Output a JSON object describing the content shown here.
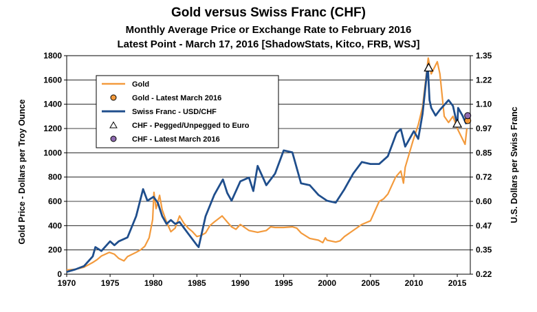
{
  "chart_data": {
    "type": "line",
    "title": "Gold versus Swiss Franc (CHF)",
    "subtitle": "Monthly Average Price or Exchange Rate to February 2016",
    "subtitle2": "Latest Point - March 17, 2016 [ShadowStats, Kitco, FRB, WSJ]",
    "ylabel_left": "Gold Price - Dollars per Troy Ounce",
    "ylabel_right": "U.S. Dollars per Swiss Franc",
    "xlim": [
      1970,
      2016.5
    ],
    "ylim_left": [
      0,
      1800
    ],
    "ylim_right": [
      0.22,
      1.35
    ],
    "x_ticks": [
      "1970",
      "1975",
      "1980",
      "1985",
      "1990",
      "1995",
      "2000",
      "2005",
      "2010",
      "2015"
    ],
    "y_ticks_left": [
      "0",
      "200",
      "400",
      "600",
      "800",
      "1000",
      "1200",
      "1400",
      "1600",
      "1800"
    ],
    "y_ticks_right": [
      "0.22",
      "0.35",
      "0.47",
      "0.60",
      "0.72",
      "0.85",
      "0.97",
      "1.10",
      "1.22",
      "1.35"
    ],
    "grid": true,
    "legend_position": "top-left",
    "legend": [
      {
        "label": "Gold",
        "kind": "line",
        "color": "#f39a3c"
      },
      {
        "label": "Gold - Latest March 2016",
        "kind": "circle",
        "color": "#f39a3c"
      },
      {
        "label": "Swiss Franc - USD/CHF",
        "kind": "line",
        "color": "#1f4e8c"
      },
      {
        "label": "CHF - Pegged/Unpegged to Euro",
        "kind": "triangle",
        "color": "#ffffff"
      },
      {
        "label": "CHF - Latest March 2016",
        "kind": "circle",
        "color": "#8e6bb0"
      }
    ],
    "series": [
      {
        "name": "Gold",
        "axis": "left",
        "color": "#f39a3c",
        "points": [
          [
            1970.0,
            35
          ],
          [
            1971.0,
            40
          ],
          [
            1972.0,
            58
          ],
          [
            1973.0,
            97
          ],
          [
            1973.5,
            120
          ],
          [
            1974.0,
            150
          ],
          [
            1974.9,
            180
          ],
          [
            1975.5,
            165
          ],
          [
            1976.0,
            130
          ],
          [
            1976.6,
            110
          ],
          [
            1977.0,
            145
          ],
          [
            1978.0,
            180
          ],
          [
            1978.5,
            200
          ],
          [
            1979.0,
            230
          ],
          [
            1979.5,
            300
          ],
          [
            1979.9,
            450
          ],
          [
            1980.05,
            675
          ],
          [
            1980.3,
            540
          ],
          [
            1980.7,
            650
          ],
          [
            1981.0,
            530
          ],
          [
            1981.5,
            430
          ],
          [
            1982.0,
            350
          ],
          [
            1982.5,
            380
          ],
          [
            1983.0,
            480
          ],
          [
            1983.5,
            420
          ],
          [
            1984.0,
            380
          ],
          [
            1984.5,
            350
          ],
          [
            1985.0,
            310
          ],
          [
            1985.5,
            320
          ],
          [
            1986.0,
            340
          ],
          [
            1986.5,
            400
          ],
          [
            1987.0,
            430
          ],
          [
            1987.9,
            480
          ],
          [
            1988.5,
            430
          ],
          [
            1989.0,
            390
          ],
          [
            1989.5,
            370
          ],
          [
            1990.0,
            410
          ],
          [
            1991.0,
            360
          ],
          [
            1992.0,
            345
          ],
          [
            1993.0,
            360
          ],
          [
            1993.5,
            390
          ],
          [
            1994.0,
            385
          ],
          [
            1995.0,
            385
          ],
          [
            1996.0,
            390
          ],
          [
            1996.5,
            380
          ],
          [
            1997.0,
            340
          ],
          [
            1998.0,
            295
          ],
          [
            1999.0,
            280
          ],
          [
            1999.5,
            260
          ],
          [
            1999.8,
            300
          ],
          [
            2000.0,
            280
          ],
          [
            2001.0,
            265
          ],
          [
            2001.5,
            275
          ],
          [
            2002.0,
            310
          ],
          [
            2003.0,
            360
          ],
          [
            2004.0,
            410
          ],
          [
            2005.0,
            440
          ],
          [
            2006.0,
            600
          ],
          [
            2006.5,
            620
          ],
          [
            2007.0,
            660
          ],
          [
            2007.9,
            800
          ],
          [
            2008.5,
            850
          ],
          [
            2008.8,
            750
          ],
          [
            2009.0,
            880
          ],
          [
            2009.9,
            1100
          ],
          [
            2010.5,
            1230
          ],
          [
            2011.0,
            1380
          ],
          [
            2011.65,
            1780
          ],
          [
            2012.0,
            1650
          ],
          [
            2012.7,
            1750
          ],
          [
            2013.0,
            1650
          ],
          [
            2013.5,
            1300
          ],
          [
            2014.0,
            1250
          ],
          [
            2014.5,
            1300
          ],
          [
            2015.0,
            1200
          ],
          [
            2015.9,
            1070
          ],
          [
            2016.1,
            1200
          ]
        ]
      },
      {
        "name": "Swiss Franc - USD/CHF",
        "axis": "right",
        "color": "#1f4e8c",
        "points": [
          [
            1970.0,
            0.232
          ],
          [
            1971.0,
            0.245
          ],
          [
            1972.0,
            0.262
          ],
          [
            1973.0,
            0.312
          ],
          [
            1973.3,
            0.36
          ],
          [
            1974.0,
            0.34
          ],
          [
            1975.0,
            0.39
          ],
          [
            1975.5,
            0.37
          ],
          [
            1976.0,
            0.39
          ],
          [
            1977.0,
            0.41
          ],
          [
            1978.0,
            0.52
          ],
          [
            1978.8,
            0.66
          ],
          [
            1979.3,
            0.6
          ],
          [
            1980.0,
            0.62
          ],
          [
            1980.5,
            0.59
          ],
          [
            1981.0,
            0.52
          ],
          [
            1981.5,
            0.48
          ],
          [
            1982.0,
            0.5
          ],
          [
            1982.5,
            0.48
          ],
          [
            1983.0,
            0.49
          ],
          [
            1984.0,
            0.43
          ],
          [
            1985.0,
            0.37
          ],
          [
            1985.2,
            0.36
          ],
          [
            1986.0,
            0.52
          ],
          [
            1987.0,
            0.63
          ],
          [
            1988.0,
            0.71
          ],
          [
            1988.5,
            0.64
          ],
          [
            1989.0,
            0.6
          ],
          [
            1990.0,
            0.7
          ],
          [
            1991.0,
            0.72
          ],
          [
            1991.5,
            0.65
          ],
          [
            1992.0,
            0.78
          ],
          [
            1992.7,
            0.71
          ],
          [
            1993.0,
            0.68
          ],
          [
            1994.0,
            0.74
          ],
          [
            1995.0,
            0.86
          ],
          [
            1996.0,
            0.85
          ],
          [
            1997.0,
            0.69
          ],
          [
            1998.0,
            0.68
          ],
          [
            1999.0,
            0.63
          ],
          [
            2000.0,
            0.6
          ],
          [
            2001.0,
            0.59
          ],
          [
            2002.0,
            0.66
          ],
          [
            2003.0,
            0.74
          ],
          [
            2004.0,
            0.8
          ],
          [
            2005.0,
            0.79
          ],
          [
            2006.0,
            0.79
          ],
          [
            2007.0,
            0.83
          ],
          [
            2008.0,
            0.95
          ],
          [
            2008.5,
            0.97
          ],
          [
            2009.0,
            0.88
          ],
          [
            2010.0,
            0.96
          ],
          [
            2010.5,
            0.92
          ],
          [
            2011.0,
            1.05
          ],
          [
            2011.6,
            1.3
          ],
          [
            2011.8,
            1.12
          ],
          [
            2012.0,
            1.08
          ],
          [
            2012.5,
            1.04
          ],
          [
            2013.0,
            1.07
          ],
          [
            2014.0,
            1.12
          ],
          [
            2014.5,
            1.09
          ],
          [
            2015.0,
            0.99
          ],
          [
            2015.1,
            1.08
          ],
          [
            2015.6,
            1.04
          ],
          [
            2016.0,
            1.0
          ],
          [
            2016.1,
            1.02
          ]
        ]
      }
    ],
    "markers": {
      "gold_latest": {
        "x": 2016.2,
        "y": 1265
      },
      "chf_latest": {
        "x": 2016.2,
        "y": 1.04
      },
      "chf_peg": [
        {
          "x": 2011.7,
          "y": 1.29
        },
        {
          "x": 2015.0,
          "y": 1.0
        }
      ]
    }
  }
}
